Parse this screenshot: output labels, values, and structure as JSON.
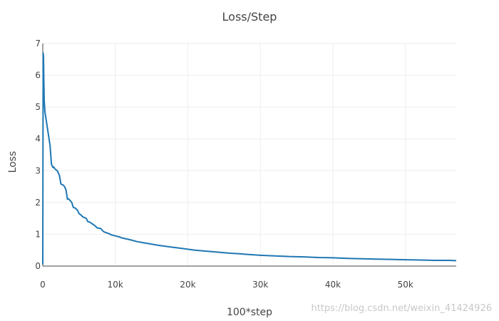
{
  "chart_data": {
    "type": "line",
    "title": "Loss/Step",
    "xlabel": "100*step",
    "ylabel": "Loss",
    "xlim": [
      0,
      57000
    ],
    "ylim": [
      0,
      7
    ],
    "x_ticks": [
      {
        "value": 0,
        "label": "0"
      },
      {
        "value": 10000,
        "label": "10k"
      },
      {
        "value": 20000,
        "label": "20k"
      },
      {
        "value": 30000,
        "label": "30k"
      },
      {
        "value": 40000,
        "label": "40k"
      },
      {
        "value": 50000,
        "label": "50k"
      }
    ],
    "y_ticks": [
      {
        "value": 0,
        "label": "0"
      },
      {
        "value": 1,
        "label": "1"
      },
      {
        "value": 2,
        "label": "2"
      },
      {
        "value": 3,
        "label": "3"
      },
      {
        "value": 4,
        "label": "4"
      },
      {
        "value": 5,
        "label": "5"
      },
      {
        "value": 6,
        "label": "6"
      },
      {
        "value": 7,
        "label": "7"
      }
    ],
    "grid": true,
    "line_color": "#1f77b4",
    "series": [
      {
        "x": [
          0,
          30,
          60,
          100,
          150,
          200,
          300,
          400,
          500,
          700,
          900,
          1000,
          1200,
          1400,
          1500,
          1700,
          2000,
          2300,
          2500,
          2800,
          3000,
          3200,
          3400,
          3500,
          3700,
          4000,
          4200,
          4500,
          4800,
          5000,
          5300,
          5500,
          6000,
          6200,
          6500,
          7000,
          7300,
          7500,
          8000,
          8300,
          8500,
          9000,
          9500,
          10000,
          10500,
          11000,
          12000,
          13000,
          14000,
          15000,
          16000,
          17000,
          18000,
          19000,
          20000,
          21000,
          22000,
          23000,
          24000,
          25000,
          26000,
          27000,
          28000,
          30000,
          32000,
          34000,
          36000,
          38000,
          40000,
          42000,
          44000,
          46000,
          48000,
          50000,
          52000,
          54000,
          56000,
          57000
        ],
        "y": [
          0.05,
          4.0,
          6.7,
          6.6,
          5.8,
          5.2,
          4.85,
          4.7,
          4.55,
          4.25,
          3.95,
          3.8,
          3.2,
          3.1,
          3.12,
          3.05,
          3.0,
          2.85,
          2.58,
          2.55,
          2.5,
          2.4,
          2.1,
          2.12,
          2.08,
          2.0,
          1.85,
          1.82,
          1.75,
          1.65,
          1.6,
          1.55,
          1.5,
          1.4,
          1.38,
          1.3,
          1.25,
          1.2,
          1.18,
          1.1,
          1.07,
          1.03,
          0.98,
          0.95,
          0.92,
          0.88,
          0.83,
          0.77,
          0.73,
          0.69,
          0.65,
          0.62,
          0.59,
          0.56,
          0.53,
          0.5,
          0.48,
          0.46,
          0.44,
          0.42,
          0.4,
          0.39,
          0.37,
          0.34,
          0.32,
          0.3,
          0.29,
          0.27,
          0.26,
          0.24,
          0.23,
          0.22,
          0.21,
          0.2,
          0.19,
          0.18,
          0.18,
          0.17
        ]
      }
    ]
  },
  "watermark": "https://blog.csdn.net/weixin_41424926"
}
